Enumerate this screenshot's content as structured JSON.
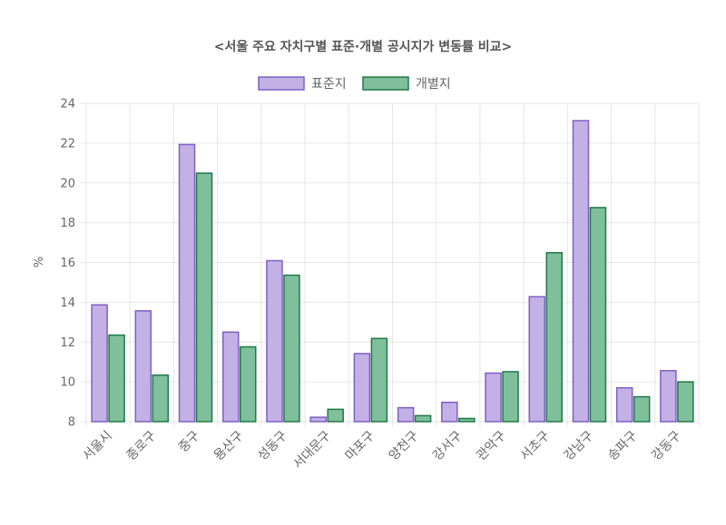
{
  "chart_data": {
    "type": "bar",
    "title": "<서울 주요 자치구별 표준·개별 공시지가 변동률 비교>",
    "xlabel": "",
    "ylabel": "%",
    "ylim": [
      8,
      24
    ],
    "yticks": [
      8,
      10,
      12,
      14,
      16,
      18,
      20,
      22,
      24
    ],
    "grid": true,
    "legend_position": "top-center",
    "categories": [
      "서울시",
      "종로구",
      "중구",
      "용산구",
      "성동구",
      "서대문구",
      "마포구",
      "양천구",
      "강서구",
      "관악구",
      "서초구",
      "강남구",
      "송파구",
      "강동구"
    ],
    "series": [
      {
        "name": "표준지",
        "fill": "#c3b1e5",
        "stroke": "#7e5fc4",
        "values": [
          13.87,
          13.57,
          21.93,
          12.5,
          16.09,
          8.22,
          11.42,
          8.7,
          8.97,
          10.44,
          14.28,
          23.13,
          9.7,
          10.56
        ]
      },
      {
        "name": "개별지",
        "fill": "#7fbf9b",
        "stroke": "#1e7a45",
        "values": [
          12.35,
          10.34,
          20.49,
          11.76,
          15.36,
          8.62,
          12.18,
          8.3,
          8.16,
          10.51,
          16.49,
          18.76,
          9.25,
          10.0
        ]
      }
    ]
  }
}
